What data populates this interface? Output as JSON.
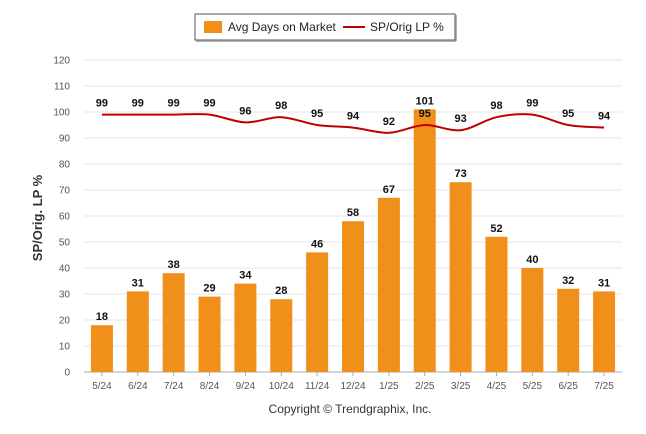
{
  "chart_data": {
    "type": "bar",
    "categories": [
      "5/24",
      "6/24",
      "7/24",
      "8/24",
      "9/24",
      "10/24",
      "11/24",
      "12/24",
      "1/25",
      "2/25",
      "3/25",
      "4/25",
      "5/25",
      "6/25",
      "7/25"
    ],
    "series": [
      {
        "name": "Avg Days on Market",
        "type": "bar",
        "color": "#f0901b",
        "values": [
          18,
          31,
          38,
          29,
          34,
          28,
          46,
          58,
          67,
          101,
          73,
          52,
          40,
          32,
          31
        ]
      },
      {
        "name": "SP/Orig LP %",
        "type": "line",
        "color": "#c00000",
        "values": [
          99,
          99,
          99,
          99,
          96,
          98,
          95,
          94,
          92,
          95,
          93,
          98,
          99,
          95,
          94
        ]
      }
    ],
    "ylabel": "SP/Orig. LP %",
    "xlabel": "",
    "ylim": [
      0,
      120
    ],
    "yticks": [
      0,
      10,
      20,
      30,
      40,
      50,
      60,
      70,
      80,
      90,
      100,
      110,
      120
    ],
    "grid": true,
    "legend_position": "top-center"
  },
  "footer": {
    "copyright": "Copyright © Trendgraphix, Inc."
  }
}
